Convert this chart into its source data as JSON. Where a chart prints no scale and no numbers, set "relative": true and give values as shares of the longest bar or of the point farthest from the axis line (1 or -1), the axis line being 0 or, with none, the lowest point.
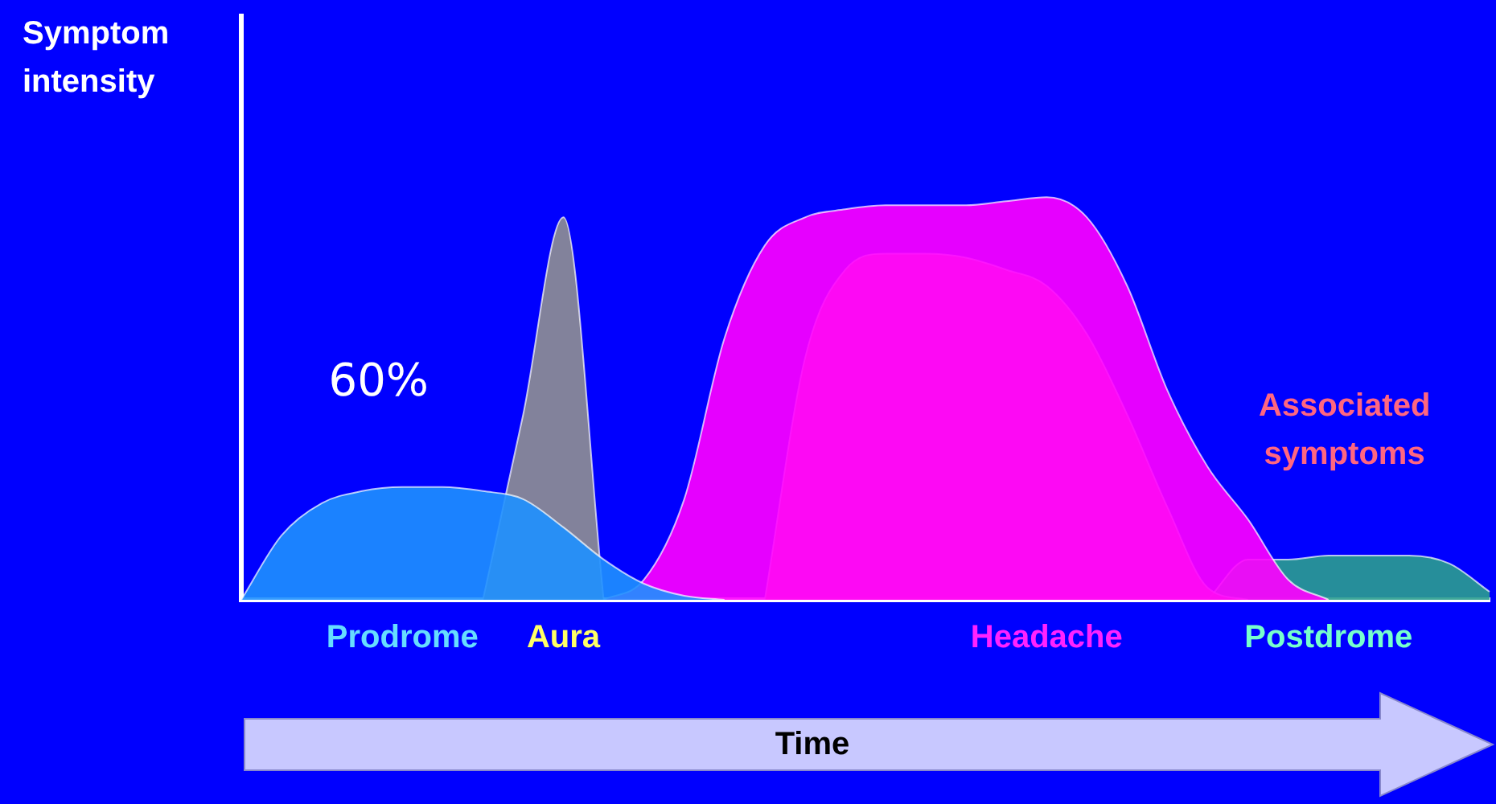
{
  "chart_data": {
    "type": "area",
    "relative": true,
    "ylabel": "Symptom intensity",
    "xlabel": "Time",
    "annotations": [
      "60%"
    ],
    "categories": [
      null,
      null,
      null,
      null,
      null,
      null,
      null,
      null,
      null,
      null,
      null,
      null,
      null,
      null,
      null,
      null,
      null,
      null,
      null,
      null,
      null,
      null,
      null,
      null,
      null,
      null,
      null,
      null,
      null,
      null,
      null,
      null
    ],
    "series": [
      {
        "name": "Prodrome",
        "color": "#1e90ff",
        "values": [
          0,
          0.16,
          0.24,
          0.27,
          0.28,
          0.28,
          0.27,
          0.25,
          0.18,
          0.1,
          0.04,
          0.01,
          0,
          null,
          null,
          null,
          null,
          null,
          null,
          null,
          null,
          null,
          null,
          null,
          null,
          null,
          null,
          null,
          null,
          null,
          null,
          null
        ]
      },
      {
        "name": "Aura",
        "color": "#909090",
        "values": [
          null,
          null,
          null,
          null,
          null,
          null,
          0,
          0.46,
          0.95,
          0,
          null,
          null,
          null,
          null,
          null,
          null,
          null,
          null,
          null,
          null,
          null,
          null,
          null,
          null,
          null,
          null,
          null,
          null,
          null,
          null,
          null,
          null
        ]
      },
      {
        "name": "Headache",
        "color": "#ff00ff",
        "values": [
          null,
          null,
          null,
          null,
          null,
          null,
          null,
          null,
          null,
          0,
          0.05,
          0.25,
          0.65,
          0.88,
          0.95,
          0.97,
          0.98,
          0.98,
          0.98,
          0.99,
          1,
          0.95,
          0.78,
          0.52,
          0.33,
          0.2,
          0.05,
          0,
          null,
          null,
          null,
          null
        ]
      },
      {
        "name": "Associated symptoms",
        "color": "#ff6680",
        "values": [
          null,
          null,
          null,
          null,
          null,
          null,
          null,
          null,
          null,
          null,
          null,
          null,
          null,
          0,
          0.6,
          0.82,
          0.86,
          0.86,
          0.85,
          0.82,
          0.78,
          0.66,
          0.46,
          0.23,
          0.03,
          0,
          null,
          null,
          null,
          null,
          null,
          null
        ]
      },
      {
        "name": "Postdrome",
        "color": "#2a9d8f",
        "values": [
          null,
          null,
          null,
          null,
          null,
          null,
          null,
          null,
          null,
          null,
          null,
          null,
          null,
          null,
          null,
          null,
          null,
          null,
          null,
          null,
          null,
          null,
          null,
          null,
          0,
          0.1,
          0.1,
          0.11,
          0.11,
          0.11,
          0.09,
          0.02
        ]
      }
    ]
  }
}
